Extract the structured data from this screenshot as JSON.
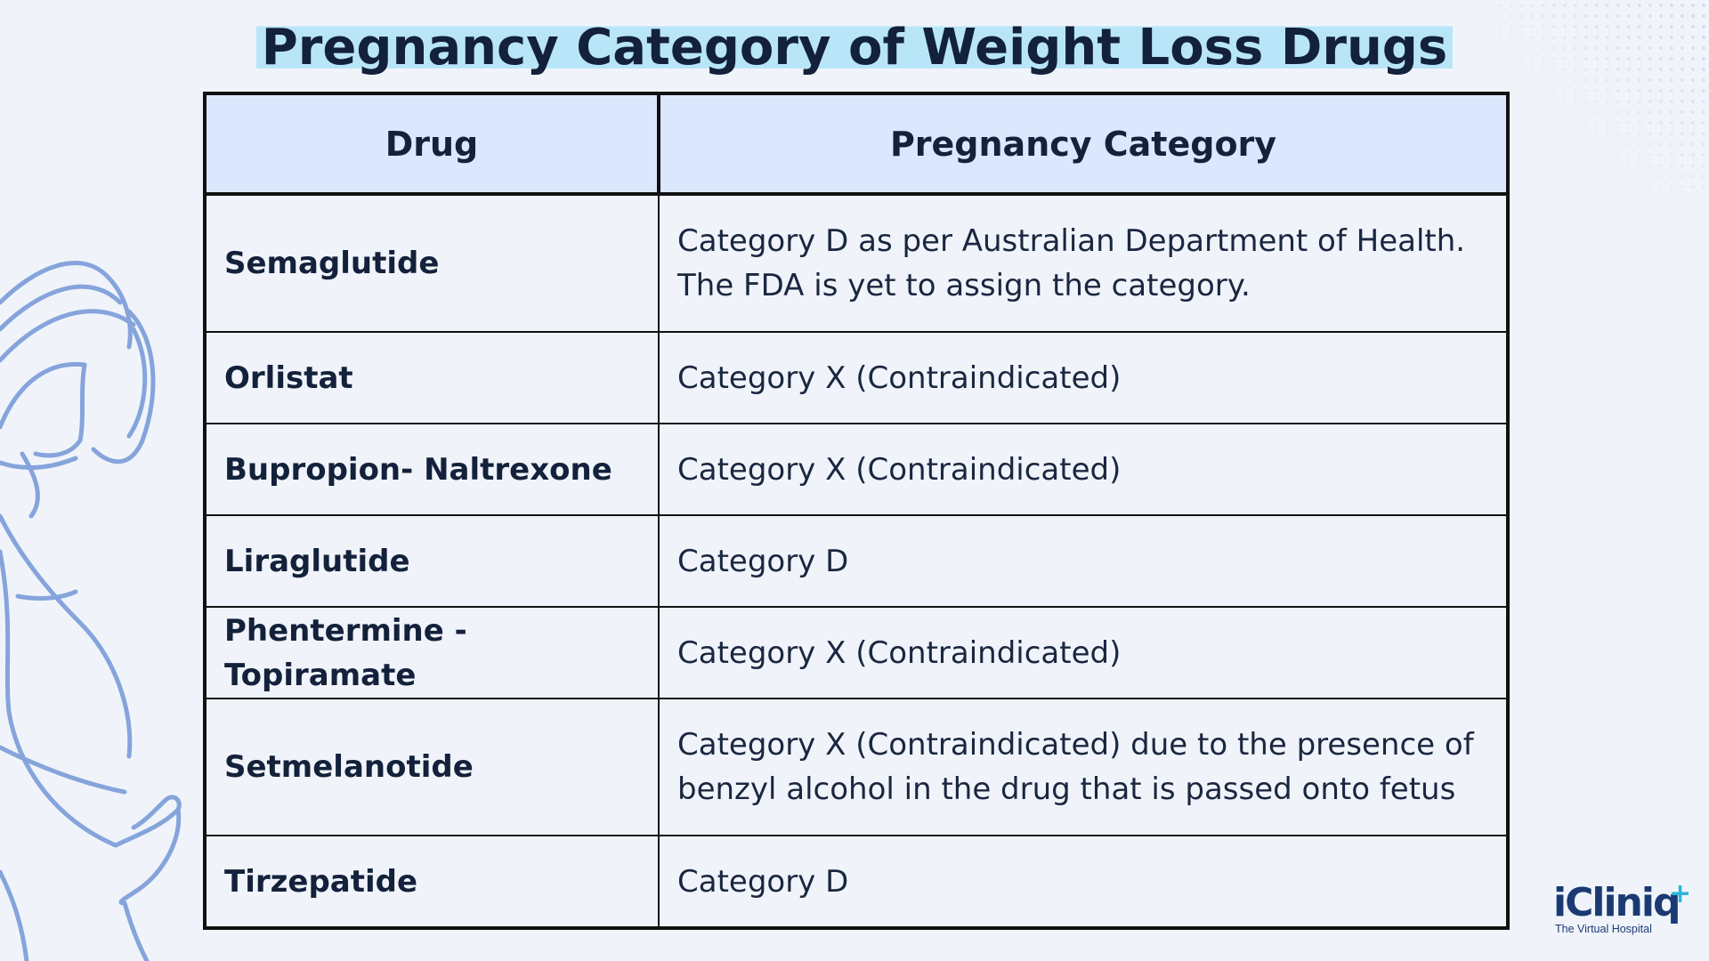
{
  "title": "Pregnancy Category of Weight Loss Drugs",
  "table": {
    "headers": [
      "Drug",
      "Pregnancy Category"
    ],
    "rows": [
      {
        "drug": "Semaglutide",
        "category": "Category D as per Australian Department of Health. The FDA is yet to assign the category."
      },
      {
        "drug": "Orlistat",
        "category": "Category X (Contraindicated)"
      },
      {
        "drug": "Bupropion- Naltrexone",
        "category": "Category X (Contraindicated)"
      },
      {
        "drug": "Liraglutide",
        "category": "Category D"
      },
      {
        "drug": "Phentermine - Topiramate",
        "category": "Category X (Contraindicated)"
      },
      {
        "drug": "Setmelanotide",
        "category": "Category X (Contraindicated) due to the presence of benzyl alcohol in the drug that is passed onto fetus"
      },
      {
        "drug": "Tirzepatide",
        "category": "Category D"
      }
    ]
  },
  "logo": {
    "name": "iCliniq",
    "tagline": "The Virtual Hospital"
  },
  "colors": {
    "background": "#f0f4fa",
    "header_fill": "#dbe7fc",
    "title_highlight": "#b8e6f8",
    "text": "#13213b",
    "illustration": "#86a4dc",
    "logo_blue": "#1b3a73",
    "logo_accent": "#2bb5d8"
  }
}
